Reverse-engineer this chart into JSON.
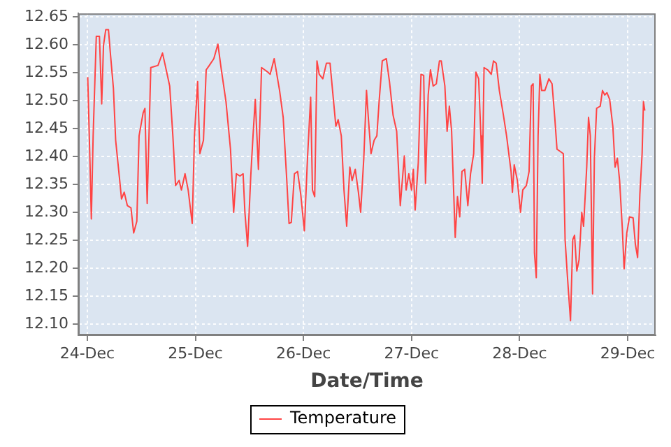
{
  "chart_data": {
    "type": "line",
    "xlabel": "Date/Time",
    "legend": "bottom",
    "grid": true,
    "marker": "none",
    "line_style": "solid",
    "xlim": [
      "--12-23T22:00",
      "--12-29T06:12"
    ],
    "ylim": [
      12.08,
      12.656
    ],
    "xticks": [
      {
        "value": "--12-24",
        "label": "24-Dec"
      },
      {
        "value": "--12-25",
        "label": "25-Dec"
      },
      {
        "value": "--12-26",
        "label": "26-Dec"
      },
      {
        "value": "--12-27",
        "label": "27-Dec"
      },
      {
        "value": "--12-28",
        "label": "28-Dec"
      },
      {
        "value": "--12-29",
        "label": "29-Dec"
      }
    ],
    "yticks": [
      {
        "value": 12.1,
        "label": "12.10"
      },
      {
        "value": 12.15,
        "label": "12.15"
      },
      {
        "value": 12.2,
        "label": "12.20"
      },
      {
        "value": 12.25,
        "label": "12.25"
      },
      {
        "value": 12.3,
        "label": "12.30"
      },
      {
        "value": 12.35,
        "label": "12.35"
      },
      {
        "value": 12.4,
        "label": "12.40"
      },
      {
        "value": 12.45,
        "label": "12.45"
      },
      {
        "value": 12.5,
        "label": "12.50"
      },
      {
        "value": 12.55,
        "label": "12.55"
      },
      {
        "value": 12.6,
        "label": "12.60"
      },
      {
        "value": 12.65,
        "label": "12.65"
      }
    ],
    "x": [
      "--12-24T00:06",
      "--12-24T00:36",
      "--12-24T00:54",
      "--12-24T01:18",
      "--12-24T02:00",
      "--12-24T02:42",
      "--12-24T03:12",
      "--12-24T03:36",
      "--12-24T04:06",
      "--12-24T04:42",
      "--12-24T05:06",
      "--12-24T05:48",
      "--12-24T06:18",
      "--12-24T07:12",
      "--12-24T07:36",
      "--12-24T08:12",
      "--12-24T08:54",
      "--12-24T09:42",
      "--12-24T10:18",
      "--12-24T11:00",
      "--12-24T11:30",
      "--12-24T12:24",
      "--12-24T12:48",
      "--12-24T13:18",
      "--12-24T14:06",
      "--12-24T15:42",
      "--12-24T16:42",
      "--12-24T17:12",
      "--12-24T18:18",
      "--12-24T19:00",
      "--12-24T19:36",
      "--12-24T20:24",
      "--12-24T20:54",
      "--12-24T21:42",
      "--12-24T22:24",
      "--12-24T23:18",
      "--12-24T23:48",
      "--12-25T00:30",
      "--12-25T01:00",
      "--12-25T01:48",
      "--12-25T02:24",
      "--12-25T03:06",
      "--12-25T04:06",
      "--12-25T05:00",
      "--12-25T05:42",
      "--12-25T06:48",
      "--12-25T07:48",
      "--12-25T08:30",
      "--12-25T09:06",
      "--12-25T09:54",
      "--12-25T10:36",
      "--12-25T11:00",
      "--12-25T11:36",
      "--12-25T12:18",
      "--12-25T12:48",
      "--12-25T13:18",
      "--12-25T14:00",
      "--12-25T14:42",
      "--12-25T16:06",
      "--12-25T16:36",
      "--12-25T17:30",
      "--12-25T18:42",
      "--12-25T19:30",
      "--12-25T20:18",
      "--12-25T20:48",
      "--12-25T21:18",
      "--12-25T22:00",
      "--12-25T22:42",
      "--12-25T23:24",
      "--12-26T00:12",
      "--12-26T00:54",
      "--12-26T01:36",
      "--12-26T02:00",
      "--12-26T02:30",
      "--12-26T03:00",
      "--12-26T03:30",
      "--12-26T04:18",
      "--12-26T05:06",
      "--12-26T05:54",
      "--12-26T06:36",
      "--12-26T07:12",
      "--12-26T07:42",
      "--12-26T08:24",
      "--12-26T09:00",
      "--12-26T09:36",
      "--12-26T10:18",
      "--12-26T10:48",
      "--12-26T11:30",
      "--12-26T12:12",
      "--12-26T12:42",
      "--12-26T13:24",
      "--12-26T14:00",
      "--12-26T14:24",
      "--12-26T15:00",
      "--12-26T15:42",
      "--12-26T16:18",
      "--12-26T16:48",
      "--12-26T17:30",
      "--12-26T18:24",
      "--12-26T19:06",
      "--12-26T19:54",
      "--12-26T20:42",
      "--12-26T21:30",
      "--12-26T22:24",
      "--12-26T22:48",
      "--12-26T23:24",
      "--12-27T00:00",
      "--12-27T00:24",
      "--12-27T00:48",
      "--12-27T01:30",
      "--12-27T02:06",
      "--12-27T02:42",
      "--12-27T03:06",
      "--12-27T03:42",
      "--12-27T04:12",
      "--12-27T04:48",
      "--12-27T05:30",
      "--12-27T06:12",
      "--12-27T06:36",
      "--12-27T07:24",
      "--12-27T07:54",
      "--12-27T08:24",
      "--12-27T08:54",
      "--12-27T09:42",
      "--12-27T10:12",
      "--12-27T10:42",
      "--12-27T11:12",
      "--12-27T11:48",
      "--12-27T12:30",
      "--12-27T13:06",
      "--12-27T13:48",
      "--12-27T14:18",
      "--12-27T14:54",
      "--12-27T15:24",
      "--12-27T15:42",
      "--12-27T16:06",
      "--12-27T16:54",
      "--12-27T17:42",
      "--12-27T18:12",
      "--12-27T18:48",
      "--12-27T19:30",
      "--12-27T20:24",
      "--12-27T21:06",
      "--12-27T21:36",
      "--12-27T22:06",
      "--12-27T22:24",
      "--12-27T22:48",
      "--12-27T23:30",
      "--12-28T00:12",
      "--12-28T00:42",
      "--12-28T01:30",
      "--12-28T02:06",
      "--12-28T02:36",
      "--12-28T03:00",
      "--12-28T03:18",
      "--12-28T03:42",
      "--12-28T04:06",
      "--12-28T04:30",
      "--12-28T04:54",
      "--12-28T05:36",
      "--12-28T06:30",
      "--12-28T07:12",
      "--12-28T07:48",
      "--12-28T08:18",
      "--12-28T09:00",
      "--12-28T09:42",
      "--12-28T10:06",
      "--12-28T10:36",
      "--12-28T11:18",
      "--12-28T11:48",
      "--12-28T12:12",
      "--12-28T12:42",
      "--12-28T13:12",
      "--12-28T13:48",
      "--12-28T14:12",
      "--12-28T14:54",
      "--12-28T15:18",
      "--12-28T15:42",
      "--12-28T16:12",
      "--12-28T16:36",
      "--12-28T17:06",
      "--12-28T17:54",
      "--12-28T18:24",
      "--12-28T18:54",
      "--12-28T19:24",
      "--12-28T20:00",
      "--12-28T20:42",
      "--12-28T21:12",
      "--12-28T21:42",
      "--12-28T22:12",
      "--12-28T22:48",
      "--12-28T23:12",
      "--12-28T23:48",
      "--12-29T00:24",
      "--12-29T01:12",
      "--12-29T01:42",
      "--12-29T02:12",
      "--12-29T02:42",
      "--12-29T03:12",
      "--12-29T03:30",
      "--12-29T03:48"
    ],
    "series": [
      {
        "name": "Temperature",
        "color": "#ff4444",
        "values": [
          12.542,
          12.389,
          12.288,
          12.437,
          12.615,
          12.615,
          12.494,
          12.599,
          12.627,
          12.627,
          12.587,
          12.522,
          12.429,
          12.357,
          12.324,
          12.336,
          12.312,
          12.308,
          12.263,
          12.284,
          12.437,
          12.478,
          12.486,
          12.316,
          12.559,
          12.563,
          12.585,
          12.567,
          12.526,
          12.437,
          12.348,
          12.357,
          12.34,
          12.369,
          12.34,
          12.28,
          12.437,
          12.534,
          12.405,
          12.429,
          12.555,
          12.563,
          12.575,
          12.601,
          12.559,
          12.498,
          12.413,
          12.3,
          12.369,
          12.365,
          12.369,
          12.3,
          12.239,
          12.365,
          12.437,
          12.502,
          12.377,
          12.559,
          12.551,
          12.547,
          12.575,
          12.518,
          12.47,
          12.357,
          12.28,
          12.282,
          12.369,
          12.373,
          12.332,
          12.267,
          12.397,
          12.506,
          12.34,
          12.328,
          12.571,
          12.547,
          12.539,
          12.567,
          12.567,
          12.506,
          12.454,
          12.466,
          12.437,
          12.34,
          12.275,
          12.381,
          12.357,
          12.377,
          12.336,
          12.3,
          12.397,
          12.518,
          12.47,
          12.405,
          12.429,
          12.437,
          12.498,
          12.571,
          12.575,
          12.534,
          12.474,
          12.445,
          12.312,
          12.401,
          12.34,
          12.369,
          12.34,
          12.377,
          12.304,
          12.389,
          12.547,
          12.545,
          12.352,
          12.51,
          12.555,
          12.526,
          12.53,
          12.571,
          12.571,
          12.526,
          12.445,
          12.49,
          12.445,
          12.255,
          12.328,
          12.292,
          12.373,
          12.377,
          12.312,
          12.369,
          12.405,
          12.551,
          12.539,
          12.437,
          12.352,
          12.559,
          12.555,
          12.547,
          12.571,
          12.567,
          12.518,
          12.474,
          12.437,
          12.405,
          12.373,
          12.336,
          12.385,
          12.357,
          12.3,
          12.34,
          12.348,
          12.373,
          12.526,
          12.53,
          12.227,
          12.183,
          12.437,
          12.547,
          12.518,
          12.518,
          12.539,
          12.53,
          12.47,
          12.413,
          12.409,
          12.405,
          12.251,
          12.187,
          12.106,
          12.251,
          12.259,
          12.195,
          12.215,
          12.3,
          12.275,
          12.381,
          12.47,
          12.437,
          12.154,
          12.397,
          12.486,
          12.49,
          12.518,
          12.51,
          12.514,
          12.502,
          12.454,
          12.381,
          12.397,
          12.357,
          12.272,
          12.199,
          12.263,
          12.292,
          12.29,
          12.243,
          12.219,
          12.332,
          12.405,
          12.498,
          12.482
        ]
      }
    ]
  }
}
